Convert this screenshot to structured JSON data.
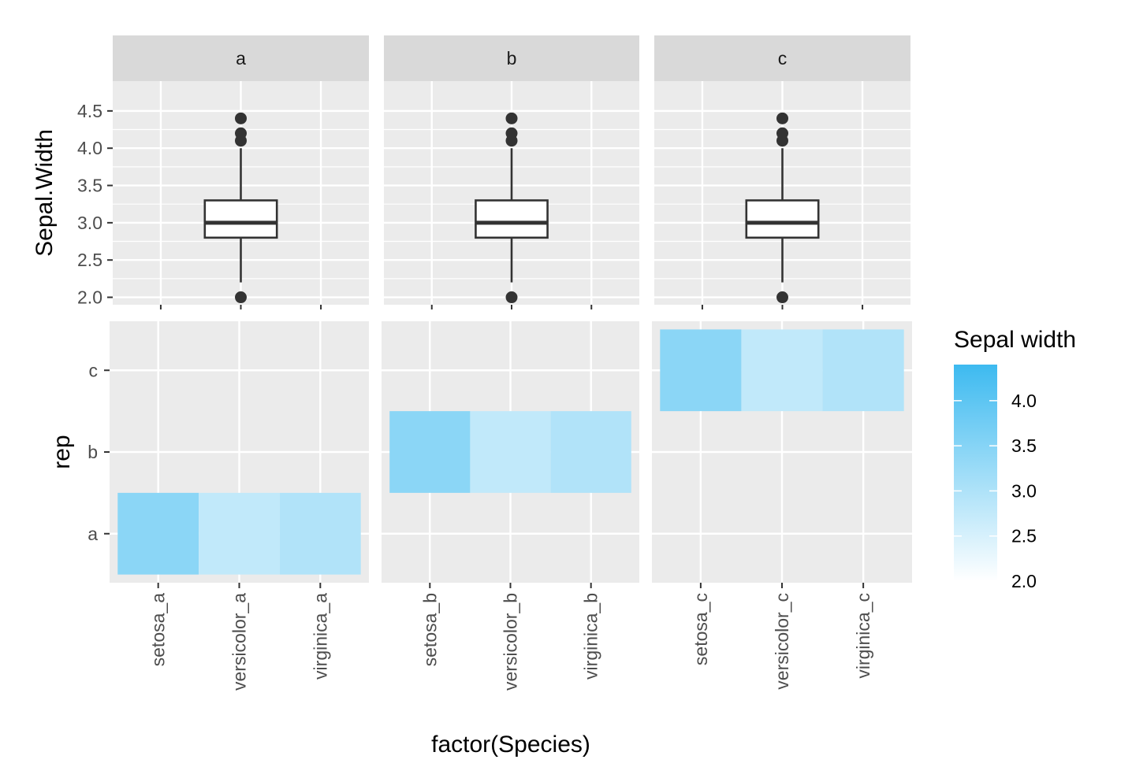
{
  "chart_data": [
    {
      "type": "box",
      "facets": [
        "a",
        "b",
        "c"
      ],
      "ylabel": "Sepal.Width",
      "ylim": [
        1.9,
        4.9
      ],
      "yticks": [
        2.0,
        2.5,
        3.0,
        3.5,
        4.0,
        4.5
      ],
      "ytick_labels": [
        "2.0",
        "2.5",
        "3.0",
        "3.5",
        "4.0",
        "4.5"
      ],
      "x_tick_count": 3,
      "box": {
        "lower_whisker": 2.2,
        "q1": 2.8,
        "median": 3.0,
        "q3": 3.3,
        "upper_whisker": 4.0
      },
      "outliers": [
        2.0,
        4.1,
        4.2,
        4.4
      ]
    },
    {
      "type": "heatmap",
      "facets": [
        "a",
        "b",
        "c"
      ],
      "ylabel": "rep",
      "y_categories": [
        "a",
        "b",
        "c"
      ],
      "xlabel": "factor(Species)",
      "x_categories": [
        [
          "setosa_a",
          "versicolor_a",
          "virginica_a"
        ],
        [
          "setosa_b",
          "versicolor_b",
          "virginica_b"
        ],
        [
          "setosa_c",
          "versicolor_c",
          "virginica_c"
        ]
      ],
      "values": [
        3.43,
        2.77,
        2.97
      ],
      "legend": {
        "title": "Sepal width",
        "range": [
          2.0,
          4.4
        ],
        "ticks": [
          2.0,
          2.5,
          3.0,
          3.5,
          4.0
        ],
        "tick_labels": [
          "2.0",
          "2.5",
          "3.0",
          "3.5",
          "4.0"
        ],
        "low_color": "#ffffff",
        "high_color": "#3dbaf0"
      },
      "colors": {
        "panel_bg": "#ebebeb",
        "strip_bg": "#d9d9d9",
        "grid": "#ffffff",
        "box_line": "#333333",
        "box_fill": "#ffffff"
      }
    }
  ]
}
